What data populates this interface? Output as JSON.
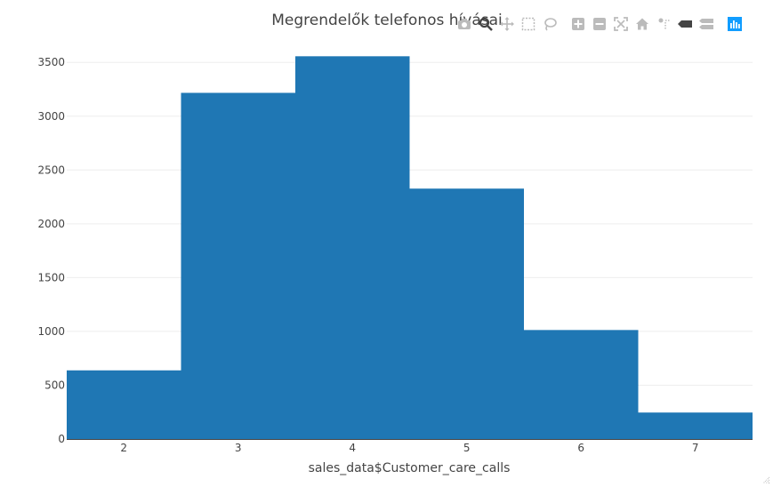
{
  "chart_data": {
    "type": "bar",
    "title": "Megrendelők telefonos hívásai",
    "xlabel": "sales_data$Customer_care_calls",
    "ylabel": "",
    "categories": [
      "2",
      "3",
      "4",
      "5",
      "6",
      "7"
    ],
    "values": [
      638,
      3217,
      3557,
      2327,
      1013,
      246
    ],
    "ylim": [
      0,
      3700
    ],
    "yticks": [
      0,
      500,
      1000,
      1500,
      2000,
      2500,
      3000,
      3500
    ],
    "ytick_labels": [
      "0",
      "500",
      "1000",
      "1500",
      "2000",
      "2500",
      "3000",
      "3500"
    ],
    "bar_color": "#1f77b4",
    "grid": true,
    "legend": "none"
  },
  "modebar": {
    "icons": [
      "camera-icon",
      "zoom-icon",
      "pan-icon",
      "box-select-icon",
      "lasso-select-icon",
      "zoom-in-icon",
      "zoom-out-icon",
      "autoscale-icon",
      "reset-axes-icon",
      "spike-lines-icon",
      "hover-closest-icon",
      "hover-compare-icon",
      "plotly-logo-icon"
    ],
    "active_color": "#444444",
    "inactive_color": "#bbbbbb",
    "logo_color": "#119dff"
  }
}
